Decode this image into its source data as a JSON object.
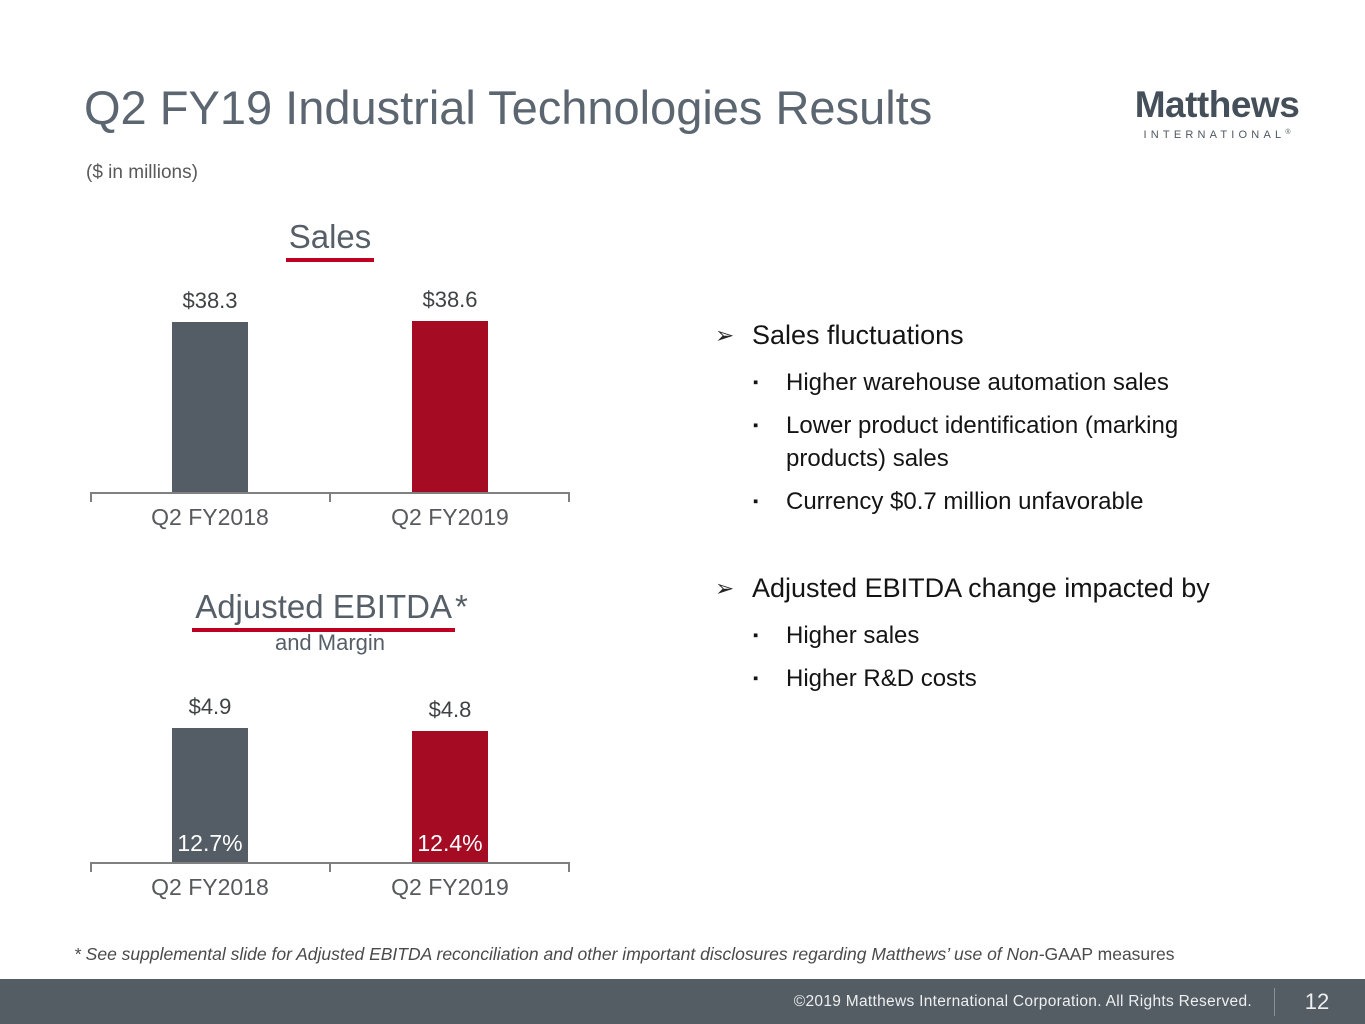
{
  "header": {
    "title": "Q2 FY19 Industrial Technologies Results",
    "units_note": "($ in millions)",
    "logo": {
      "name": "Matthews",
      "subtext": "INTERNATIONAL",
      "registered_mark": "®"
    }
  },
  "chart_data": [
    {
      "type": "bar",
      "title": "Sales",
      "title_main": "Sales",
      "title_mark": "",
      "subtitle": "",
      "categories": [
        "Q2 FY2018",
        "Q2 FY2019"
      ],
      "values": [
        38.3,
        38.6
      ],
      "value_labels": [
        "$38.3",
        "$38.6"
      ],
      "bar_colors": [
        "#545d66",
        "#a50c23"
      ],
      "xlabel": "",
      "ylabel": "",
      "units": "$ in millions",
      "ylim": [
        0,
        45
      ],
      "gridlines": false,
      "legend": false
    },
    {
      "type": "bar",
      "title": "Adjusted EBITDA*",
      "title_main": "Adjusted EBITDA",
      "title_mark": "*",
      "subtitle": "and Margin",
      "categories": [
        "Q2 FY2018",
        "Q2 FY2019"
      ],
      "values": [
        4.9,
        4.8
      ],
      "value_labels": [
        "$4.9",
        "$4.8"
      ],
      "margin_labels": [
        "12.7%",
        "12.4%"
      ],
      "bar_colors": [
        "#545d66",
        "#a50c23"
      ],
      "xlabel": "",
      "ylabel": "",
      "units": "$ in millions",
      "ylim": [
        0,
        7.2
      ],
      "gridlines": false,
      "legend": false
    }
  ],
  "bullets": {
    "level1_marker": "➢",
    "level2_marker": "▪",
    "groups": [
      {
        "heading": "Sales fluctuations",
        "items": [
          "Higher warehouse automation sales",
          "Lower product identification (marking products) sales",
          "Currency $0.7 million unfavorable"
        ]
      },
      {
        "heading": "Adjusted EBITDA change impacted by",
        "items": [
          "Higher sales",
          "Higher R&D costs"
        ]
      }
    ]
  },
  "footnote": {
    "italic_part": "* See supplemental slide for Adjusted EBITDA reconciliation and other important disclosures regarding Matthews’ use of Non-",
    "regular_part": "GAAP measures"
  },
  "footer": {
    "copyright": "©2019 Matthews International Corporation. All Rights Reserved.",
    "page_number": "12"
  },
  "colors": {
    "accent_red": "#a50c23",
    "underline_red": "#c00021",
    "bar_gray": "#545d66",
    "title_gray": "#5b6670",
    "footer_bg": "#545c64"
  }
}
